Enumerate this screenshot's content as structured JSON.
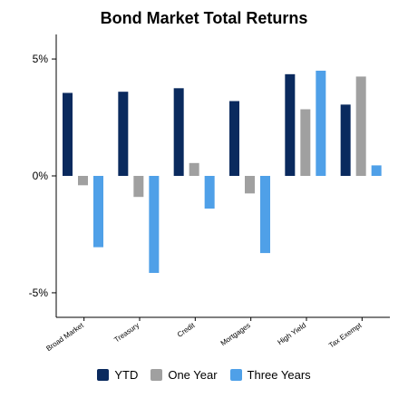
{
  "chart_data": {
    "type": "bar",
    "title": "Bond Market Total Returns",
    "xlabel": "",
    "ylabel": "",
    "categories": [
      "Broad Market",
      "Treasury",
      "Credit",
      "Mortgages",
      "High Yield",
      "Tax Exempt"
    ],
    "series": [
      {
        "name": "YTD",
        "color": "#0a2a5e",
        "values": [
          3.55,
          3.6,
          3.75,
          3.2,
          4.35,
          3.05
        ]
      },
      {
        "name": "One Year",
        "color": "#a0a0a0",
        "values": [
          -0.4,
          -0.9,
          0.55,
          -0.75,
          2.85,
          4.25
        ]
      },
      {
        "name": "Three Years",
        "color": "#4fa0e8",
        "values": [
          -3.05,
          -4.15,
          -1.4,
          -3.3,
          4.5,
          0.45
        ]
      }
    ],
    "ylim": [
      -6.05,
      6.05
    ],
    "yticks": [
      5,
      0,
      -5
    ],
    "ytick_labels": [
      "5%",
      "0%",
      "-5%"
    ],
    "legend_position": "bottom",
    "grid": false
  }
}
